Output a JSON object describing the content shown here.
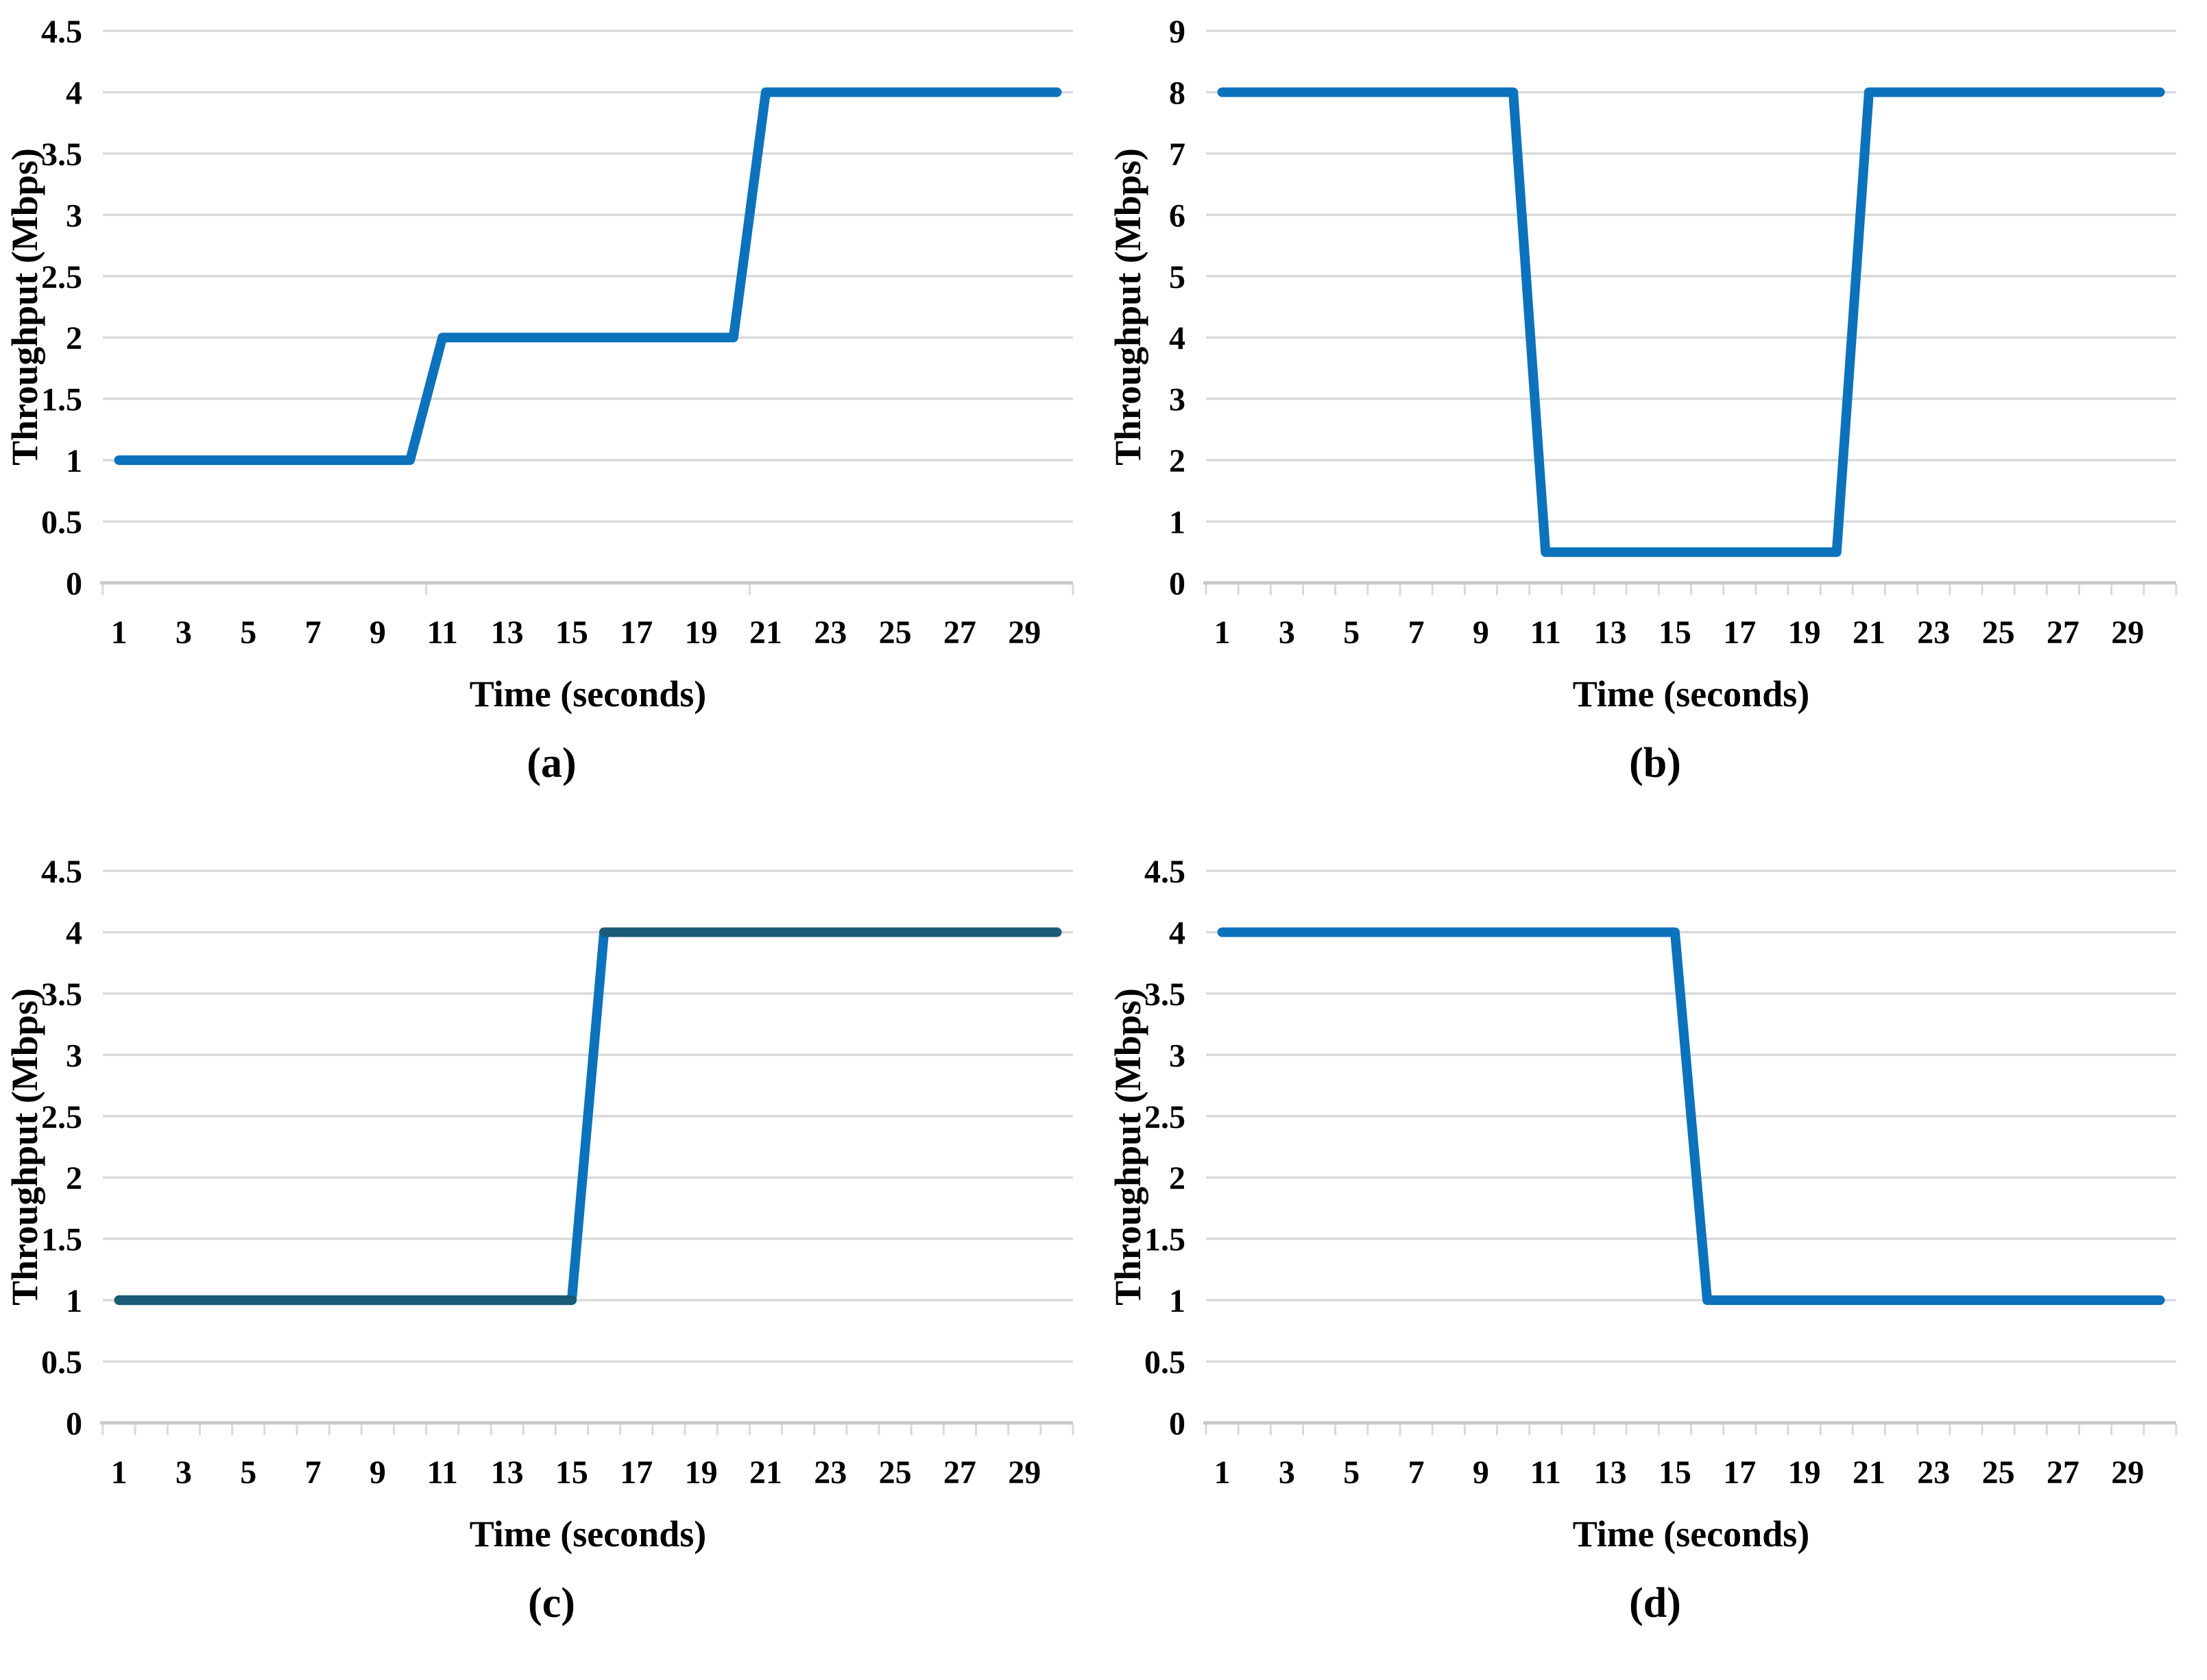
{
  "palette": {
    "line_blue": "#0C72BC",
    "line_dark_teal": "#1B5B78",
    "gridline_gray": "#D9D9D9",
    "axis_gray": "#C9C9C9",
    "text_black": "#000000"
  },
  "chart_data": [
    {
      "id": "a",
      "type": "line",
      "title": "",
      "caption": "(a)",
      "xlabel": "Time (seconds)",
      "ylabel": "Throughput (Mbps)",
      "grid": true,
      "legend": "none",
      "x": [
        1,
        2,
        3,
        4,
        5,
        6,
        7,
        8,
        9,
        10,
        11,
        12,
        13,
        14,
        15,
        16,
        17,
        18,
        19,
        20,
        21,
        22,
        23,
        24,
        25,
        26,
        27,
        28,
        29,
        30
      ],
      "xtick_labels": [
        "1",
        "3",
        "5",
        "7",
        "9",
        "11",
        "13",
        "15",
        "17",
        "19",
        "21",
        "23",
        "25",
        "27",
        "29"
      ],
      "ylim": [
        0,
        4.5
      ],
      "ystep": 0.5,
      "ytick_labels": [
        "0",
        "0.5",
        "1",
        "1.5",
        "2",
        "2.5",
        "3",
        "3.5",
        "4",
        "4.5"
      ],
      "axis_tick_interval": 10,
      "series": [
        {
          "name": "throughput",
          "color": "#0C72BC",
          "values": [
            1,
            1,
            1,
            1,
            1,
            1,
            1,
            1,
            1,
            1,
            2,
            2,
            2,
            2,
            2,
            2,
            2,
            2,
            2,
            2,
            4,
            4,
            4,
            4,
            4,
            4,
            4,
            4,
            4,
            4
          ]
        }
      ]
    },
    {
      "id": "b",
      "type": "line",
      "title": "",
      "caption": "(b)",
      "xlabel": "Time (seconds)",
      "ylabel": "Throughput (Mbps)",
      "grid": true,
      "legend": "none",
      "x": [
        1,
        2,
        3,
        4,
        5,
        6,
        7,
        8,
        9,
        10,
        11,
        12,
        13,
        14,
        15,
        16,
        17,
        18,
        19,
        20,
        21,
        22,
        23,
        24,
        25,
        26,
        27,
        28,
        29,
        30
      ],
      "xtick_labels": [
        "1",
        "3",
        "5",
        "7",
        "9",
        "11",
        "13",
        "15",
        "17",
        "19",
        "21",
        "23",
        "25",
        "27",
        "29"
      ],
      "ylim": [
        0,
        9
      ],
      "ystep": 1,
      "ytick_labels": [
        "0",
        "1",
        "2",
        "3",
        "4",
        "5",
        "6",
        "7",
        "8",
        "9"
      ],
      "axis_tick_interval": 1,
      "series": [
        {
          "name": "throughput",
          "color": "#0C72BC",
          "values": [
            8,
            8,
            8,
            8,
            8,
            8,
            8,
            8,
            8,
            8,
            0.5,
            0.5,
            0.5,
            0.5,
            0.5,
            0.5,
            0.5,
            0.5,
            0.5,
            0.5,
            8,
            8,
            8,
            8,
            8,
            8,
            8,
            8,
            8,
            8
          ]
        }
      ]
    },
    {
      "id": "c",
      "type": "line",
      "title": "",
      "caption": "(c)",
      "xlabel": "Time (seconds)",
      "ylabel": "Throughput (Mbps)",
      "grid": true,
      "legend": "none",
      "x": [
        1,
        2,
        3,
        4,
        5,
        6,
        7,
        8,
        9,
        10,
        11,
        12,
        13,
        14,
        15,
        16,
        17,
        18,
        19,
        20,
        21,
        22,
        23,
        24,
        25,
        26,
        27,
        28,
        29,
        30
      ],
      "xtick_labels": [
        "1",
        "3",
        "5",
        "7",
        "9",
        "11",
        "13",
        "15",
        "17",
        "19",
        "21",
        "23",
        "25",
        "27",
        "29"
      ],
      "ylim": [
        0,
        4.5
      ],
      "ystep": 0.5,
      "ytick_labels": [
        "0",
        "0.5",
        "1",
        "1.5",
        "2",
        "2.5",
        "3",
        "3.5",
        "4",
        "4.5"
      ],
      "axis_tick_interval": 1,
      "series": [
        {
          "name": "throughput-base",
          "color": "#0C72BC",
          "values": [
            1,
            1,
            1,
            1,
            1,
            1,
            1,
            1,
            1,
            1,
            1,
            1,
            1,
            1,
            1,
            4,
            4,
            4,
            4,
            4,
            4,
            4,
            4,
            4,
            4,
            4,
            4,
            4,
            4,
            4
          ]
        },
        {
          "name": "throughput-overlay",
          "color": "#1B5B78",
          "render": "plateaus-only",
          "values": [
            1,
            1,
            1,
            1,
            1,
            1,
            1,
            1,
            1,
            1,
            1,
            1,
            1,
            1,
            1,
            4,
            4,
            4,
            4,
            4,
            4,
            4,
            4,
            4,
            4,
            4,
            4,
            4,
            4,
            4
          ]
        }
      ]
    },
    {
      "id": "d",
      "type": "line",
      "title": "",
      "caption": "(d)",
      "xlabel": "Time (seconds)",
      "ylabel": "Throughput (Mbps)",
      "grid": true,
      "legend": "none",
      "x": [
        1,
        2,
        3,
        4,
        5,
        6,
        7,
        8,
        9,
        10,
        11,
        12,
        13,
        14,
        15,
        16,
        17,
        18,
        19,
        20,
        21,
        22,
        23,
        24,
        25,
        26,
        27,
        28,
        29,
        30
      ],
      "xtick_labels": [
        "1",
        "3",
        "5",
        "7",
        "9",
        "11",
        "13",
        "15",
        "17",
        "19",
        "21",
        "23",
        "25",
        "27",
        "29"
      ],
      "ylim": [
        0,
        4.5
      ],
      "ystep": 0.5,
      "ytick_labels": [
        "0",
        "0.5",
        "1",
        "1.5",
        "2",
        "2.5",
        "3",
        "3.5",
        "4",
        "4.5"
      ],
      "axis_tick_interval": 1,
      "series": [
        {
          "name": "throughput",
          "color": "#0C72BC",
          "values": [
            4,
            4,
            4,
            4,
            4,
            4,
            4,
            4,
            4,
            4,
            4,
            4,
            4,
            4,
            4,
            1,
            1,
            1,
            1,
            1,
            1,
            1,
            1,
            1,
            1,
            1,
            1,
            1,
            1,
            1
          ]
        }
      ]
    }
  ]
}
